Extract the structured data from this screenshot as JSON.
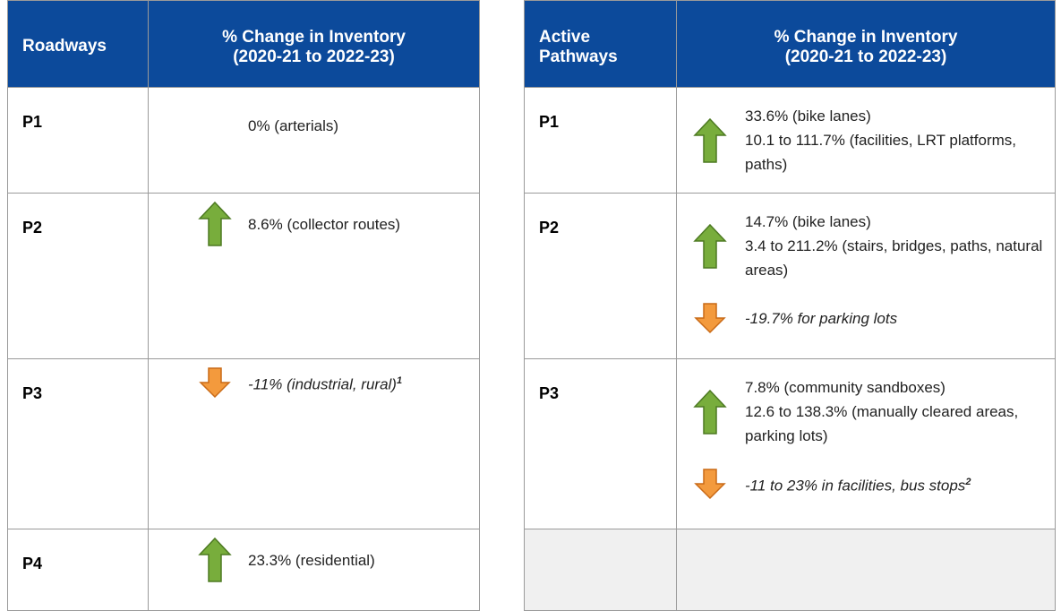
{
  "tables": [
    {
      "headers": [
        "Roadways",
        [
          "% Change in Inventory",
          "(2020-21 to 2022-23)"
        ]
      ],
      "rows": [
        {
          "label": "P1",
          "items": [
            {
              "arrow": "none",
              "italic": false,
              "lines": [
                "0% (arterials)"
              ]
            }
          ]
        },
        {
          "label": "P2",
          "items": [
            {
              "arrow": "up",
              "italic": false,
              "lines": [
                "8.6% (collector routes)"
              ]
            }
          ]
        },
        {
          "label": "P3",
          "items": [
            {
              "arrow": "down",
              "italic": true,
              "lines": [
                "-11% (industrial, rural)"
              ],
              "sup": "1"
            }
          ]
        },
        {
          "label": "P4",
          "items": [
            {
              "arrow": "up",
              "italic": false,
              "lines": [
                "23.3% (residential)"
              ]
            }
          ]
        }
      ]
    },
    {
      "headers": [
        [
          "Active",
          "Pathways"
        ],
        [
          "% Change in Inventory",
          "(2020-21 to 2022-23)"
        ]
      ],
      "rows": [
        {
          "label": "P1",
          "items": [
            {
              "arrow": "up",
              "italic": false,
              "lines": [
                "33.6% (bike lanes)",
                "10.1 to 111.7% (facilities, LRT platforms, paths)"
              ]
            }
          ]
        },
        {
          "label": "P2",
          "items": [
            {
              "arrow": "up",
              "italic": false,
              "lines": [
                "14.7% (bike lanes)",
                "3.4 to 211.2% (stairs, bridges, paths, natural areas)"
              ]
            },
            {
              "arrow": "down",
              "italic": true,
              "lines": [
                "-19.7% for parking lots"
              ]
            }
          ]
        },
        {
          "label": "P3",
          "items": [
            {
              "arrow": "up",
              "italic": false,
              "lines": [
                "7.8% (community sandboxes)",
                "12.6 to 138.3% (manually cleared areas, parking lots)"
              ]
            },
            {
              "arrow": "down",
              "italic": true,
              "lines": [
                "-11 to 23% in facilities, bus stops"
              ],
              "sup": "2"
            }
          ]
        }
      ]
    }
  ]
}
